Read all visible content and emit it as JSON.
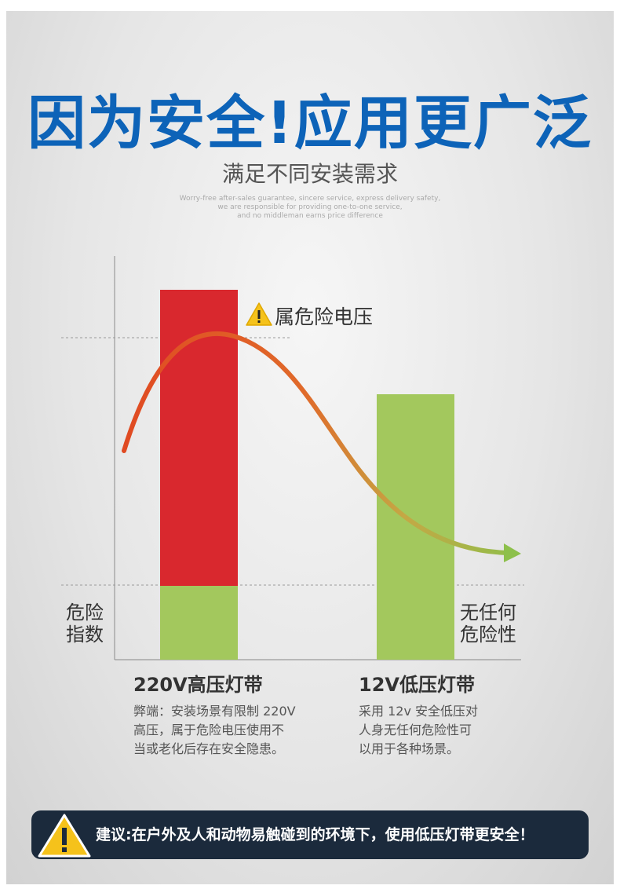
{
  "header": {
    "title": "因为安全!应用更广泛",
    "subtitle": "满足不同安装需求",
    "tagline": [
      "Worry-free after-sales guarantee, sincere service, express delivery safety,",
      "we are responsible for providing one-to-one service,",
      "and no middleman earns price difference"
    ]
  },
  "chart": {
    "warning_label": "属危险电压",
    "y_axis_left": [
      "危险",
      "指数"
    ],
    "y_axis_right": [
      "无任何",
      "危险性"
    ]
  },
  "chart_data": {
    "type": "bar",
    "categories": [
      "220V高压灯带",
      "12V低压灯带"
    ],
    "danger_fraction": [
      0.8,
      0.0
    ],
    "colors": {
      "danger": "#d9282e",
      "safe": "#a3c85d",
      "curve_start": "#e04a22",
      "curve_end": "#8dc04b"
    }
  },
  "products": [
    {
      "name": "220V高压灯带",
      "desc": [
        "弊端：安装场景有限制 220V",
        "高压，属于危险电压使用不",
        "当或老化后存在安全隐患。"
      ]
    },
    {
      "name": "12V低压灯带",
      "desc": [
        "采用 12v 安全低压对",
        "人身无任何危险性可",
        "以用于各种场景。"
      ]
    }
  ],
  "banner": {
    "icon": "warning-triangle-icon",
    "text": "建议:在户外及人和动物易触碰到的环境下，使用低压灯带更安全！"
  },
  "colors": {
    "title": "#0d63b8",
    "banner_bg": "#1b2a3c",
    "warning_yellow": "#f5c21b"
  }
}
